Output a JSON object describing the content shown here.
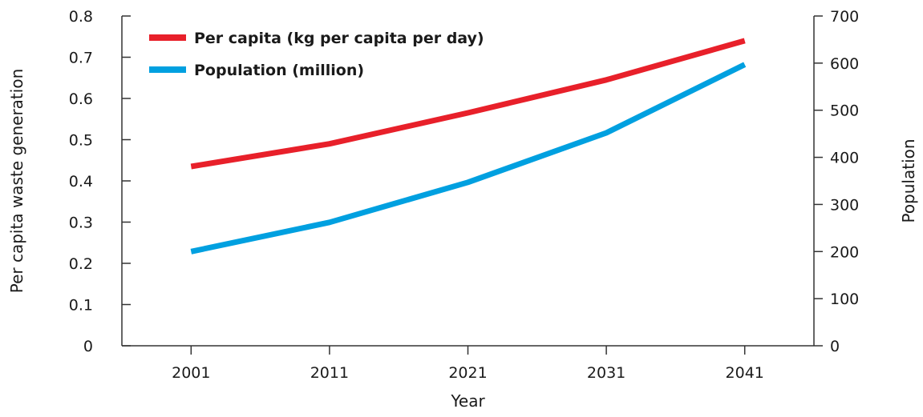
{
  "chart_data": {
    "type": "line",
    "x": [
      2001,
      2011,
      2021,
      2031,
      2041
    ],
    "xlabel": "Year",
    "ylabel_left": "Per capita waste generation",
    "ylabel_right": "Population",
    "ylim_left": [
      0,
      0.8
    ],
    "ylim_right": [
      0,
      700
    ],
    "yticks_left": [
      "0",
      "0.1",
      "0.2",
      "0.3",
      "0.4",
      "0.5",
      "0.6",
      "0.7",
      "0.8"
    ],
    "yticks_right": [
      "0",
      "100",
      "200",
      "300",
      "400",
      "500",
      "600",
      "700"
    ],
    "grid": false,
    "legend_position": "top-left",
    "series": [
      {
        "name": "Per capita (kg per capita per day)",
        "axis": "left",
        "color": "#e8202a",
        "values": [
          0.435,
          0.49,
          0.565,
          0.645,
          0.74
        ]
      },
      {
        "name": "Population (million)",
        "axis": "right",
        "color": "#00a0e0",
        "values": [
          200,
          262,
          347,
          452,
          597
        ]
      }
    ]
  }
}
